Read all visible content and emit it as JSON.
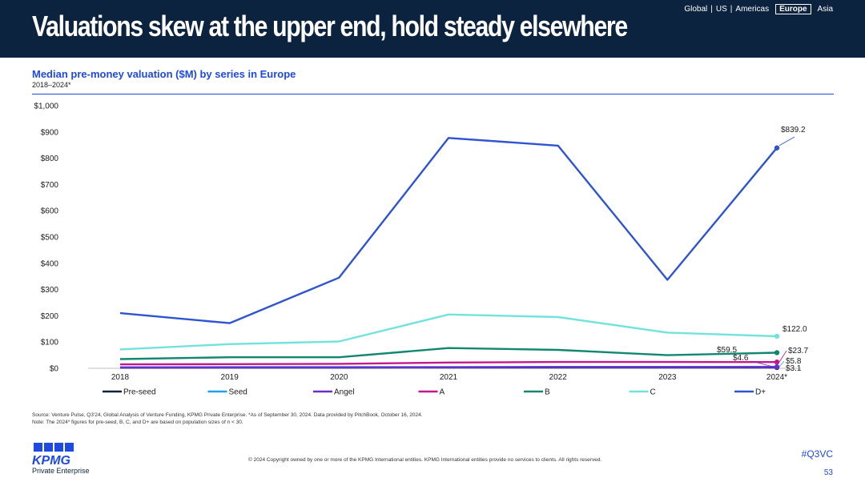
{
  "header": {
    "title": "Valuations skew at the upper end, hold steady elsewhere",
    "regions": [
      "Global",
      "US",
      "Americas",
      "Europe",
      "Asia"
    ],
    "active_region": "Europe"
  },
  "chart_data": {
    "type": "line",
    "title": "Median pre-money valuation ($M) by series in Europe",
    "subtitle": "2018–2024*",
    "xlabel": "",
    "ylabel": "",
    "categories": [
      "2018",
      "2019",
      "2020",
      "2021",
      "2022",
      "2023",
      "2024*"
    ],
    "ylim": [
      0,
      1000
    ],
    "yticks": [
      "$0",
      "$100",
      "$200",
      "$300",
      "$400",
      "$500",
      "$600",
      "$700",
      "$800",
      "$900",
      "$1,000"
    ],
    "legend_position": "bottom",
    "grid": false,
    "series": [
      {
        "name": "Pre-seed",
        "color": "#0c2340",
        "values": [
          2,
          2.5,
          2.5,
          3,
          3,
          3,
          3.1
        ]
      },
      {
        "name": "Seed",
        "color": "#1aa3ec",
        "values": [
          4,
          4.5,
          4.5,
          5,
          5.5,
          5.5,
          5.8
        ]
      },
      {
        "name": "Angel",
        "color": "#6d2ec7",
        "values": [
          3,
          3.5,
          3.5,
          4,
          4.5,
          4.5,
          4.6
        ]
      },
      {
        "name": "A",
        "color": "#c4178c",
        "values": [
          15,
          16,
          17,
          22,
          24,
          24,
          23.7
        ]
      },
      {
        "name": "B",
        "color": "#12876f",
        "values": [
          35,
          42,
          42,
          77,
          70,
          50,
          59.5
        ]
      },
      {
        "name": "C",
        "color": "#72e3dc",
        "values": [
          72,
          92,
          102,
          205,
          195,
          136,
          122
        ]
      },
      {
        "name": "D+",
        "color": "#2e54d1",
        "values": [
          210,
          172,
          345,
          877,
          848,
          337,
          839.2
        ]
      }
    ],
    "annotations": [
      "$839.2",
      "$122.0",
      "$59.5",
      "$23.7",
      "$4.6",
      "$5.8",
      "$3.1"
    ]
  },
  "footnotes": [
    "Source: Venture Pulse, Q3'24, Global Analysis of Venture Funding, KPMG Private Enterprise. *As of September 30, 2024. Data provided by PitchBook, October 16, 2024.",
    "Note: The 2024* figures for pre-seed, B, C, and D+ are based on population sizes of n < 30."
  ],
  "footer": {
    "copyright": "© 2024 Copyright owned by one or more of the KPMG International entities. KPMG International entities provide no services to clients. All rights reserved.",
    "logo_text": "KPMG",
    "logo_subtext": "Private Enterprise",
    "hashtag": "#Q3VC",
    "page_number": "53"
  }
}
